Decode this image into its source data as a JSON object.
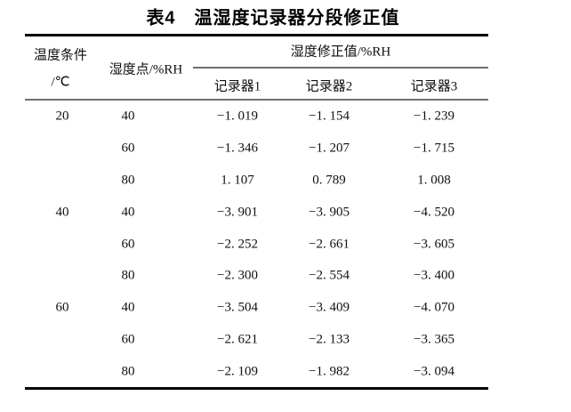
{
  "title": "表4　温湿度记录器分段修正值",
  "table": {
    "header": {
      "temperature_condition_line1": "温度条件",
      "temperature_condition_line2": "/℃",
      "humidity_point": "湿度点/%RH",
      "correction_group": "湿度修正值/%RH",
      "recorders": [
        "记录器1",
        "记录器2",
        "记录器3"
      ]
    },
    "rows": [
      {
        "temperature": "20",
        "humidity_point": "40",
        "values": [
          "−1. 019",
          "−1. 154",
          "−1. 239"
        ]
      },
      {
        "temperature": "",
        "humidity_point": "60",
        "values": [
          "−1. 346",
          "−1. 207",
          "−1. 715"
        ]
      },
      {
        "temperature": "",
        "humidity_point": "80",
        "values": [
          "1. 107",
          "0. 789",
          "1. 008"
        ]
      },
      {
        "temperature": "40",
        "humidity_point": "40",
        "values": [
          "−3. 901",
          "−3. 905",
          "−4. 520"
        ]
      },
      {
        "temperature": "",
        "humidity_point": "60",
        "values": [
          "−2. 252",
          "−2. 661",
          "−3. 605"
        ]
      },
      {
        "temperature": "",
        "humidity_point": "80",
        "values": [
          "−2. 300",
          "−2. 554",
          "−3. 400"
        ]
      },
      {
        "temperature": "60",
        "humidity_point": "40",
        "values": [
          "−3. 504",
          "−3. 409",
          "−4. 070"
        ]
      },
      {
        "temperature": "",
        "humidity_point": "60",
        "values": [
          "−2. 621",
          "−2. 133",
          "−3. 365"
        ]
      },
      {
        "temperature": "",
        "humidity_point": "80",
        "values": [
          "−2. 109",
          "−1. 982",
          "−3. 094"
        ]
      }
    ]
  }
}
